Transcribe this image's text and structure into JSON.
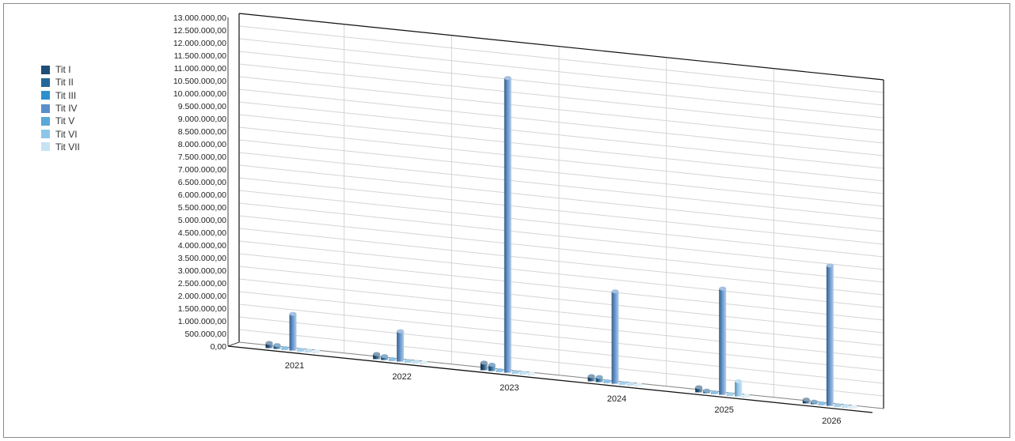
{
  "chart_data": {
    "type": "bar",
    "title": "",
    "xlabel": "",
    "ylabel": "",
    "ylim": [
      0,
      13000000
    ],
    "y_tick_step": 500000,
    "y_tick_labels": [
      "0,00",
      "500.000,00",
      "1.000.000,00",
      "1.500.000,00",
      "2.000.000,00",
      "2.500.000,00",
      "3.000.000,00",
      "3.500.000,00",
      "4.000.000,00",
      "4.500.000,00",
      "5.000.000,00",
      "5.500.000,00",
      "6.000.000,00",
      "6.500.000,00",
      "7.000.000,00",
      "7.500.000,00",
      "8.000.000,00",
      "8.500.000,00",
      "9.000.000,00",
      "9.500.000,00",
      "10.000.000,00",
      "10.500.000,00",
      "11.000.000,00",
      "11.500.000,00",
      "12.000.000,00",
      "12.500.000,00",
      "13.000.000,00"
    ],
    "categories": [
      "2021",
      "2022",
      "2023",
      "2024",
      "2025",
      "2026"
    ],
    "grid": true,
    "legend_position": "left",
    "series": [
      {
        "name": "Tit I",
        "color": "#1f4e79",
        "values": [
          200000,
          200000,
          300000,
          200000,
          200000,
          150000
        ]
      },
      {
        "name": "Tit II",
        "color": "#23689b",
        "values": [
          150000,
          150000,
          250000,
          200000,
          100000,
          100000
        ]
      },
      {
        "name": "Tit III",
        "color": "#2e8fcf",
        "values": [
          30000,
          30000,
          40000,
          30000,
          30000,
          30000
        ]
      },
      {
        "name": "Tit IV",
        "color": "#5b8fc9",
        "values": [
          1450000,
          1200000,
          11650000,
          3650000,
          4200000,
          5550000
        ]
      },
      {
        "name": "Tit V",
        "color": "#5aa7d8",
        "values": [
          30000,
          30000,
          40000,
          30000,
          30000,
          30000
        ]
      },
      {
        "name": "Tit VI",
        "color": "#8ec6ea",
        "values": [
          30000,
          30000,
          40000,
          30000,
          600000,
          30000
        ]
      },
      {
        "name": "Tit VII",
        "color": "#c7e3f3",
        "values": [
          30000,
          30000,
          40000,
          30000,
          30000,
          30000
        ]
      }
    ]
  }
}
